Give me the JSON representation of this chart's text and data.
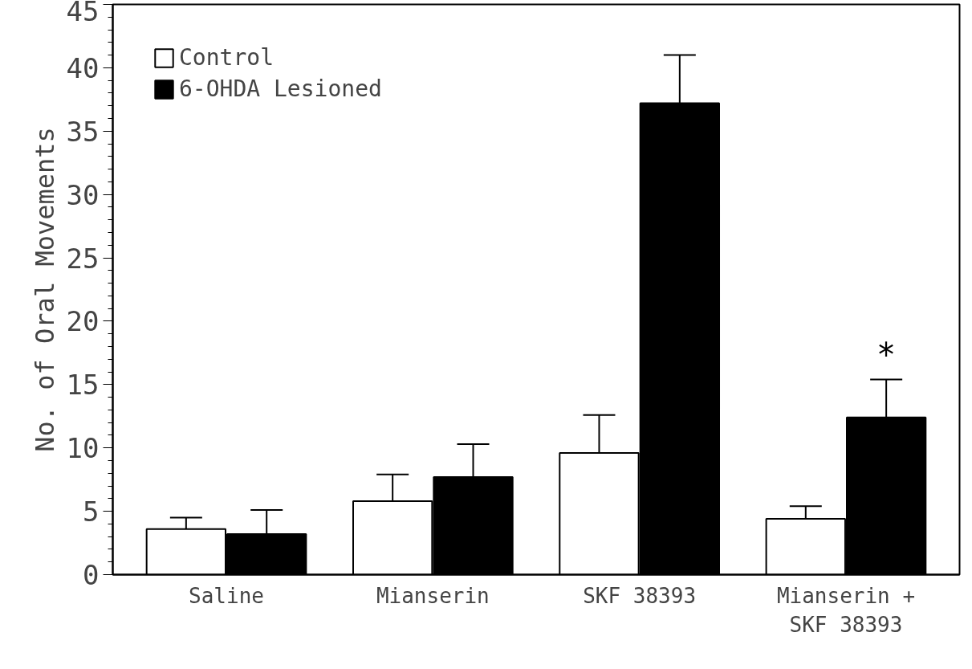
{
  "chart_data": {
    "type": "bar",
    "ylabel": "No. of Oral Movements",
    "categories": [
      "Saline",
      "Mianserin",
      "SKF 38393",
      "Mianserin +\nSKF 38393"
    ],
    "series": [
      {
        "name": "Control",
        "color": "#ffffff",
        "values": [
          3.6,
          5.8,
          9.6,
          4.4
        ],
        "errors": [
          [
            3.6,
            4.5
          ],
          [
            5.8,
            7.9
          ],
          [
            9.6,
            12.6
          ],
          [
            4.4,
            5.4
          ]
        ]
      },
      {
        "name": "6-OHDA Lesioned",
        "color": "#000000",
        "values": [
          3.2,
          7.7,
          37.2,
          12.4
        ],
        "errors": [
          [
            3.2,
            5.1
          ],
          [
            7.7,
            10.3
          ],
          [
            37.2,
            41.0
          ],
          [
            12.4,
            15.4
          ]
        ]
      }
    ],
    "ylim": [
      0,
      45
    ],
    "yticks": [
      0,
      5,
      10,
      15,
      20,
      25,
      30,
      35,
      40,
      45
    ],
    "annotations": [
      "*"
    ],
    "legend": "top left",
    "grid": false
  }
}
